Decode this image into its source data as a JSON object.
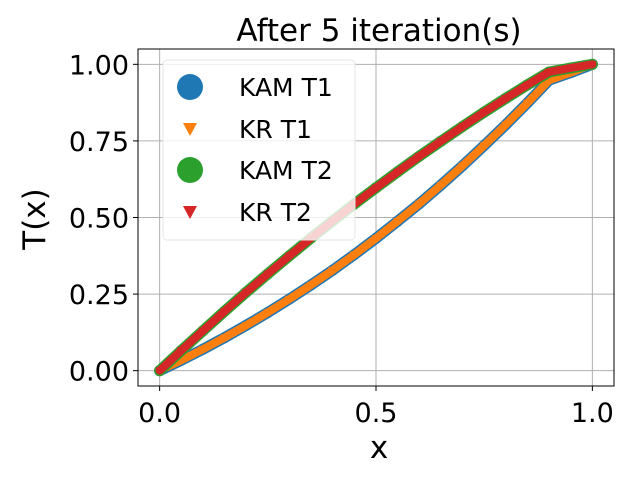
{
  "chart_data": {
    "type": "scatter",
    "title": "After 5 iteration(s)",
    "xlabel": "x",
    "ylabel": "T(x)",
    "xlim": [
      -0.05,
      1.05
    ],
    "ylim": [
      -0.05,
      1.05
    ],
    "xticks": [
      "0.0",
      "0.5",
      "1.0"
    ],
    "xtick_values": [
      0.0,
      0.5,
      1.0
    ],
    "yticks": [
      "0.00",
      "0.25",
      "0.50",
      "0.75",
      "1.00"
    ],
    "ytick_values": [
      0.0,
      0.25,
      0.5,
      0.75,
      1.0
    ],
    "grid": true,
    "legend_position": "upper-left",
    "series": [
      {
        "name": "KAM T1",
        "marker": "circle",
        "color": "#1f77b4",
        "x": [
          0,
          0.05,
          0.1,
          0.15,
          0.2,
          0.25,
          0.3,
          0.35,
          0.4,
          0.45,
          0.5,
          0.55,
          0.6,
          0.65,
          0.7,
          0.75,
          0.8,
          0.85,
          0.9,
          0.95,
          1.0
        ],
        "y": [
          0,
          0.034,
          0.07,
          0.108,
          0.148,
          0.19,
          0.234,
          0.28,
          0.328,
          0.379,
          0.432,
          0.488,
          0.545,
          0.606,
          0.669,
          0.735,
          0.803,
          0.874,
          0.948,
          0.973,
          1.0
        ]
      },
      {
        "name": "KR T1",
        "marker": "triangle-down",
        "color": "#ff7f0e",
        "x": [
          0,
          0.05,
          0.1,
          0.15,
          0.2,
          0.25,
          0.3,
          0.35,
          0.4,
          0.45,
          0.5,
          0.55,
          0.6,
          0.65,
          0.7,
          0.75,
          0.8,
          0.85,
          0.9,
          0.95,
          1.0
        ],
        "y": [
          0,
          0.034,
          0.07,
          0.108,
          0.148,
          0.19,
          0.234,
          0.28,
          0.328,
          0.379,
          0.432,
          0.488,
          0.545,
          0.606,
          0.669,
          0.735,
          0.803,
          0.874,
          0.948,
          0.973,
          1.0
        ]
      },
      {
        "name": "KAM T2",
        "marker": "circle",
        "color": "#2ca02c",
        "x": [
          0,
          0.05,
          0.1,
          0.15,
          0.2,
          0.25,
          0.3,
          0.35,
          0.4,
          0.45,
          0.5,
          0.55,
          0.6,
          0.65,
          0.7,
          0.75,
          0.8,
          0.85,
          0.9,
          0.95,
          1.0
        ],
        "y": [
          0,
          0.066,
          0.13,
          0.194,
          0.256,
          0.316,
          0.375,
          0.433,
          0.489,
          0.544,
          0.597,
          0.649,
          0.7,
          0.749,
          0.797,
          0.844,
          0.889,
          0.933,
          0.975,
          0.988,
          1.0
        ]
      },
      {
        "name": "KR T2",
        "marker": "triangle-down",
        "color": "#d62728",
        "x": [
          0,
          0.05,
          0.1,
          0.15,
          0.2,
          0.25,
          0.3,
          0.35,
          0.4,
          0.45,
          0.5,
          0.55,
          0.6,
          0.65,
          0.7,
          0.75,
          0.8,
          0.85,
          0.9,
          0.95,
          1.0
        ],
        "y": [
          0,
          0.066,
          0.13,
          0.194,
          0.256,
          0.316,
          0.375,
          0.433,
          0.489,
          0.544,
          0.597,
          0.649,
          0.7,
          0.749,
          0.797,
          0.844,
          0.889,
          0.933,
          0.975,
          0.988,
          1.0
        ]
      }
    ]
  }
}
